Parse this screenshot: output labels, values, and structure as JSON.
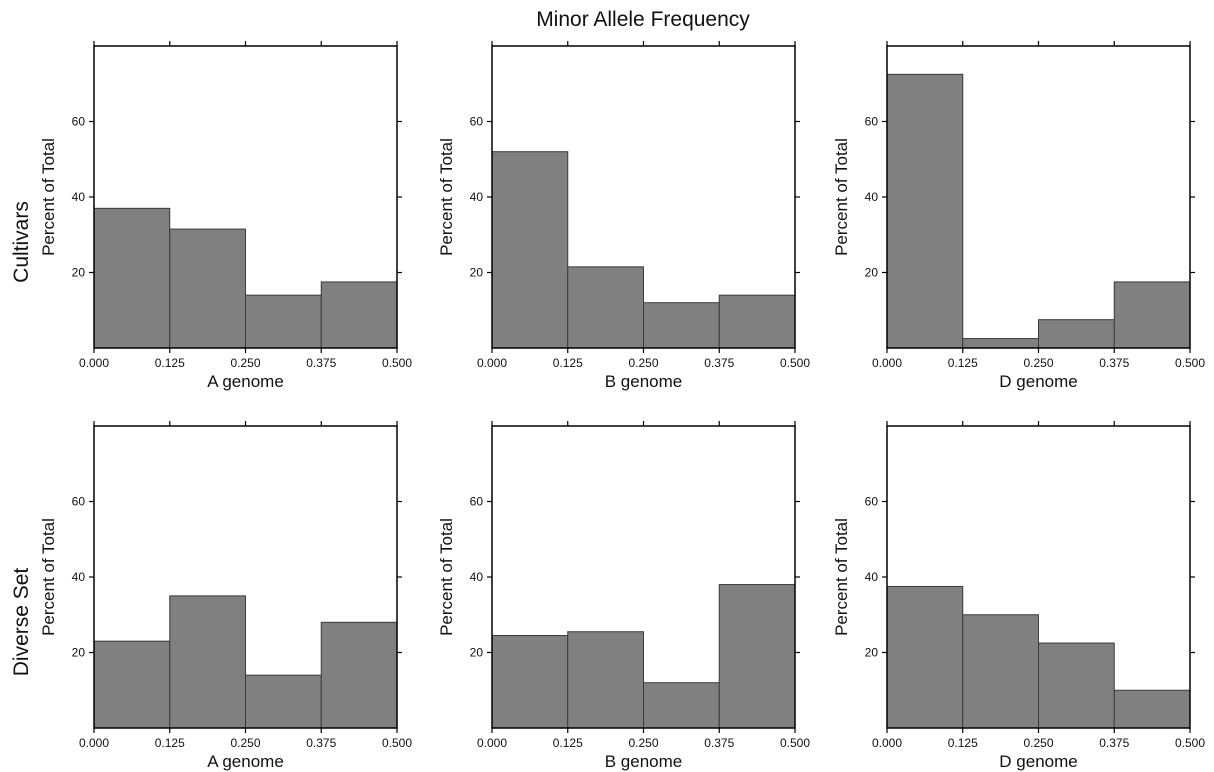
{
  "figure": {
    "title": "Minor Allele Frequency",
    "row_labels": [
      "Cultivars",
      "Diverse Set"
    ]
  },
  "chart_data": [
    {
      "type": "bar",
      "row": "Cultivars",
      "xlabel": "A genome",
      "ylabel": "Percent of Total",
      "bin_edges": [
        0.0,
        0.125,
        0.25,
        0.375,
        0.5
      ],
      "x_ticks": [
        "0.000",
        "0.125",
        "0.250",
        "0.375",
        "0.500"
      ],
      "y_ticks": [
        20,
        40,
        60
      ],
      "ylim": [
        0,
        80
      ],
      "values": [
        37,
        31.5,
        14,
        17.5
      ]
    },
    {
      "type": "bar",
      "row": "Cultivars",
      "xlabel": "B genome",
      "ylabel": "Percent of Total",
      "bin_edges": [
        0.0,
        0.125,
        0.25,
        0.375,
        0.5
      ],
      "x_ticks": [
        "0.000",
        "0.125",
        "0.250",
        "0.375",
        "0.500"
      ],
      "y_ticks": [
        20,
        40,
        60
      ],
      "ylim": [
        0,
        80
      ],
      "values": [
        52,
        21.5,
        12,
        14
      ]
    },
    {
      "type": "bar",
      "row": "Cultivars",
      "xlabel": "D genome",
      "ylabel": "Percent of Total",
      "bin_edges": [
        0.0,
        0.125,
        0.25,
        0.375,
        0.5
      ],
      "x_ticks": [
        "0.000",
        "0.125",
        "0.250",
        "0.375",
        "0.500"
      ],
      "y_ticks": [
        20,
        40,
        60
      ],
      "ylim": [
        0,
        80
      ],
      "values": [
        72.5,
        2.5,
        7.5,
        17.5
      ]
    },
    {
      "type": "bar",
      "row": "Diverse Set",
      "xlabel": "A genome",
      "ylabel": "Percent of Total",
      "bin_edges": [
        0.0,
        0.125,
        0.25,
        0.375,
        0.5
      ],
      "x_ticks": [
        "0.000",
        "0.125",
        "0.250",
        "0.375",
        "0.500"
      ],
      "y_ticks": [
        20,
        40,
        60
      ],
      "ylim": [
        0,
        80
      ],
      "values": [
        23,
        35,
        14,
        28
      ]
    },
    {
      "type": "bar",
      "row": "Diverse Set",
      "xlabel": "B genome",
      "ylabel": "Percent of Total",
      "bin_edges": [
        0.0,
        0.125,
        0.25,
        0.375,
        0.5
      ],
      "x_ticks": [
        "0.000",
        "0.125",
        "0.250",
        "0.375",
        "0.500"
      ],
      "y_ticks": [
        20,
        40,
        60
      ],
      "ylim": [
        0,
        80
      ],
      "values": [
        24.5,
        25.5,
        12,
        38
      ]
    },
    {
      "type": "bar",
      "row": "Diverse Set",
      "xlabel": "D genome",
      "ylabel": "Percent of Total",
      "bin_edges": [
        0.0,
        0.125,
        0.25,
        0.375,
        0.5
      ],
      "x_ticks": [
        "0.000",
        "0.125",
        "0.250",
        "0.375",
        "0.500"
      ],
      "y_ticks": [
        20,
        40,
        60
      ],
      "ylim": [
        0,
        80
      ],
      "values": [
        37.5,
        30,
        22.5,
        10
      ]
    }
  ]
}
